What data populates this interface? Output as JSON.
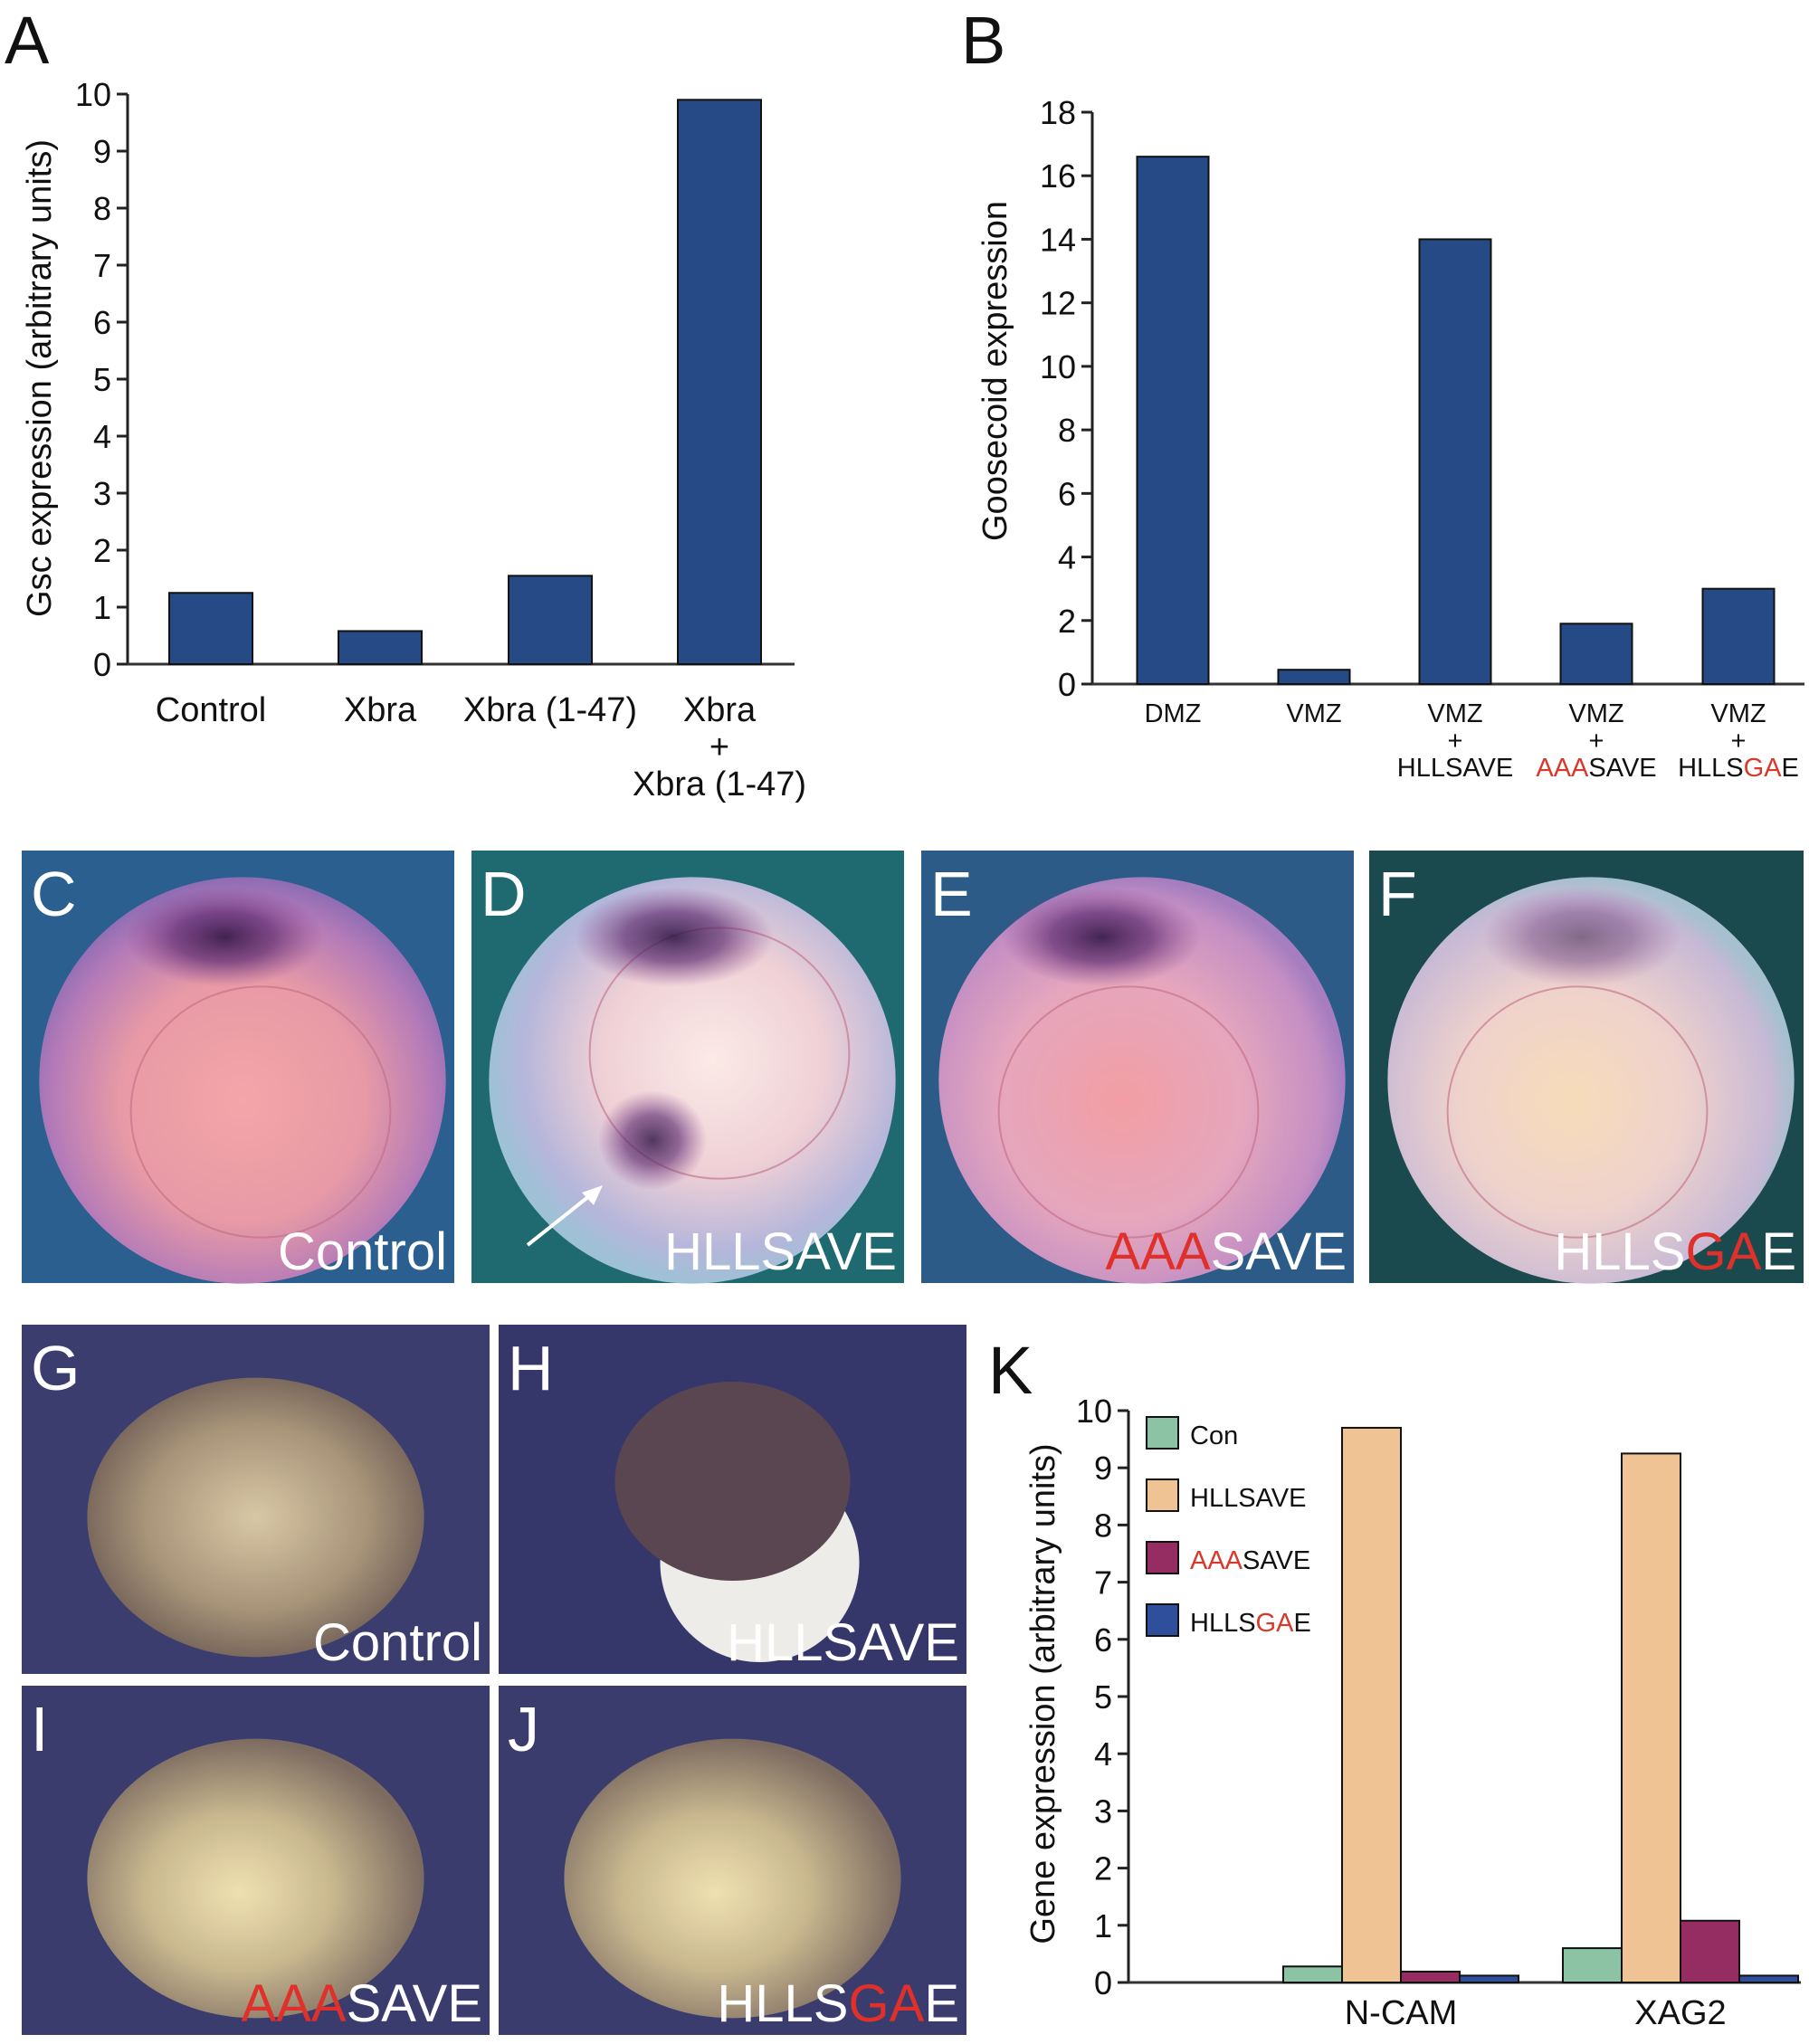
{
  "accent_red": "#d8392b",
  "photo_red": "#e0302a",
  "chart_data": [
    {
      "panel": "A",
      "type": "bar",
      "ylabel": "Gsc expression (arbitrary units)",
      "ylim": [
        0,
        10
      ],
      "yticks": [
        0,
        1,
        2,
        3,
        4,
        5,
        6,
        7,
        8,
        9,
        10
      ],
      "categories": [
        [
          [
            {
              "t": "Control"
            }
          ]
        ],
        [
          [
            {
              "t": "Xbra"
            }
          ]
        ],
        [
          [
            {
              "t": "Xbra (1-47)"
            }
          ]
        ],
        [
          [
            {
              "t": "Xbra"
            }
          ],
          [
            {
              "t": "+"
            }
          ],
          [
            {
              "t": "Xbra (1-47)"
            }
          ]
        ]
      ],
      "values": [
        1.25,
        0.58,
        1.55,
        9.9
      ],
      "color": "#264a85"
    },
    {
      "panel": "B",
      "type": "bar",
      "ylabel": "Goosecoid expression",
      "ylim": [
        0,
        18
      ],
      "yticks": [
        0,
        2,
        4,
        6,
        8,
        10,
        12,
        14,
        16,
        18
      ],
      "categories": [
        [
          [
            {
              "t": "DMZ"
            }
          ]
        ],
        [
          [
            {
              "t": "VMZ"
            }
          ]
        ],
        [
          [
            {
              "t": "VMZ"
            }
          ],
          [
            {
              "t": "+"
            }
          ],
          [
            {
              "t": "HLLSAVE"
            }
          ]
        ],
        [
          [
            {
              "t": "VMZ"
            }
          ],
          [
            {
              "t": "+"
            }
          ],
          [
            {
              "t": "AAA",
              "red": true
            },
            {
              "t": "SAVE"
            }
          ]
        ],
        [
          [
            {
              "t": "VMZ"
            }
          ],
          [
            {
              "t": "+"
            }
          ],
          [
            {
              "t": "HLLS"
            },
            {
              "t": "GA",
              "red": true
            },
            {
              "t": "E"
            }
          ]
        ]
      ],
      "values": [
        16.6,
        0.45,
        14.0,
        1.9,
        3.0
      ],
      "color": "#264a85"
    },
    {
      "panel": "K",
      "type": "bar",
      "ylabel": "Gene expression (arbitrary units)",
      "ylim": [
        0,
        10
      ],
      "yticks": [
        0,
        1,
        2,
        3,
        4,
        5,
        6,
        7,
        8,
        9,
        10
      ],
      "categories": [
        "N-CAM",
        "XAG2"
      ],
      "legend_placement": "top-left",
      "series": [
        {
          "name": [
            {
              "t": "Con"
            }
          ],
          "color": "#8cc3a4",
          "values": [
            0.28,
            0.6
          ]
        },
        {
          "name": [
            {
              "t": "HLLSAVE"
            }
          ],
          "color": "#f0c395",
          "values": [
            9.7,
            9.25
          ]
        },
        {
          "name": [
            {
              "t": "AAA",
              "red": true
            },
            {
              "t": "SAVE"
            }
          ],
          "color": "#952d62",
          "values": [
            0.19,
            1.08
          ]
        },
        {
          "name": [
            {
              "t": "HLLS"
            },
            {
              "t": "GA",
              "red": true
            },
            {
              "t": "E"
            }
          ],
          "color": "#2f4e9c",
          "values": [
            0.12,
            0.12
          ]
        }
      ]
    }
  ],
  "photos": [
    {
      "letter": "C",
      "caption": [
        {
          "t": "Control"
        }
      ],
      "bg": "#2a5f8f"
    },
    {
      "letter": "D",
      "caption": [
        {
          "t": "HLLSAVE"
        }
      ],
      "bg": "#1f6a70",
      "arrow": true
    },
    {
      "letter": "E",
      "caption": [
        {
          "t": "AAA",
          "red": true
        },
        {
          "t": "SAVE"
        }
      ],
      "bg": "#2b5b86"
    },
    {
      "letter": "F",
      "caption": [
        {
          "t": "HLLS"
        },
        {
          "t": "GA",
          "red": true
        },
        {
          "t": "E"
        }
      ],
      "bg": "#1b4a4e"
    },
    {
      "letter": "G",
      "caption": [
        {
          "t": "Control"
        }
      ],
      "bg": "#3b3d6e"
    },
    {
      "letter": "H",
      "caption": [
        {
          "t": "HLLSAVE"
        }
      ],
      "bg": "#35376a"
    },
    {
      "letter": "I",
      "caption": [
        {
          "t": "AAA",
          "red": true
        },
        {
          "t": "SAVE"
        }
      ],
      "bg": "#3a3c6d"
    },
    {
      "letter": "J",
      "caption": [
        {
          "t": "HLLS"
        },
        {
          "t": "GA",
          "red": true
        },
        {
          "t": "E"
        }
      ],
      "bg": "#3a3c6d"
    }
  ]
}
